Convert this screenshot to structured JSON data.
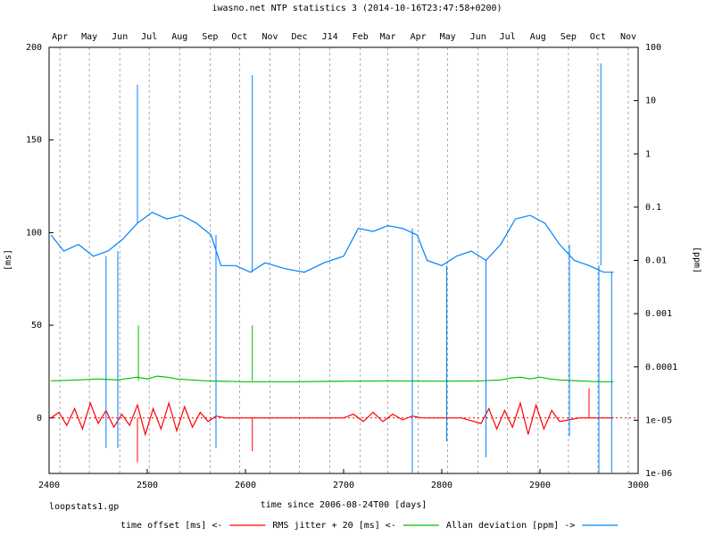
{
  "chart_data": {
    "type": "line",
    "title": "iwasno.net NTP statistics 3 (2014-10-16T23:47:58+0200)",
    "footer_label": "loopstats1.gp",
    "xlabel": "time since 2006-08-24T00 [days]",
    "ylabel_left": "[ms]",
    "ylabel_right": "[ppm]",
    "xlim": [
      2400,
      3000
    ],
    "ylim_left": [
      -30,
      200
    ],
    "right_axis_scale": "log",
    "right_axis_decades": [
      -6,
      2
    ],
    "grid": "vertical dashed month lines",
    "x_ticks": [
      2400,
      2500,
      2600,
      2700,
      2800,
      2900,
      3000
    ],
    "x_tick_labels": [
      "2400",
      "2500",
      "2600",
      "2700",
      "2800",
      "2900",
      "3000"
    ],
    "y_left_ticks": [
      0,
      50,
      100,
      150,
      200
    ],
    "y_left_tick_labels": [
      "0",
      "50",
      "100",
      "150",
      "200"
    ],
    "y_right_tick_labels": [
      "1e-06",
      "1e-05",
      "0.0001",
      "0.001",
      "0.01",
      "0.1",
      "1",
      "10",
      "100"
    ],
    "months": [
      {
        "label": "Apr",
        "x": 2411
      },
      {
        "label": "May",
        "x": 2441
      },
      {
        "label": "Jun",
        "x": 2472
      },
      {
        "label": "Jul",
        "x": 2502
      },
      {
        "label": "Aug",
        "x": 2533
      },
      {
        "label": "Sep",
        "x": 2564
      },
      {
        "label": "Oct",
        "x": 2594
      },
      {
        "label": "Nov",
        "x": 2625
      },
      {
        "label": "Dec",
        "x": 2655
      },
      {
        "label": "J14",
        "x": 2686
      },
      {
        "label": "Feb",
        "x": 2717
      },
      {
        "label": "Mar",
        "x": 2745
      },
      {
        "label": "Apr",
        "x": 2776
      },
      {
        "label": "May",
        "x": 2806
      },
      {
        "label": "Jun",
        "x": 2837
      },
      {
        "label": "Jul",
        "x": 2867
      },
      {
        "label": "Aug",
        "x": 2898
      },
      {
        "label": "Sep",
        "x": 2929
      },
      {
        "label": "Oct",
        "x": 2959
      },
      {
        "label": "Nov",
        "x": 2990
      }
    ],
    "series": [
      {
        "name": "time offset [ms] <-",
        "color": "#ff0000",
        "axis": "left",
        "x": [
          2402,
          2410,
          2418,
          2426,
          2434,
          2442,
          2450,
          2458,
          2466,
          2474,
          2482,
          2490,
          2498,
          2506,
          2514,
          2522,
          2530,
          2538,
          2546,
          2554,
          2562,
          2570,
          2580,
          2600,
          2620,
          2640,
          2660,
          2680,
          2700,
          2710,
          2720,
          2730,
          2740,
          2750,
          2760,
          2770,
          2780,
          2800,
          2820,
          2840,
          2848,
          2856,
          2864,
          2872,
          2880,
          2888,
          2896,
          2904,
          2912,
          2920,
          2940,
          2960,
          2975
        ],
        "y": [
          0,
          3,
          -4,
          5,
          -6,
          8,
          -3,
          4,
          -5,
          2,
          -4,
          7,
          -9,
          5,
          -6,
          8,
          -7,
          6,
          -5,
          3,
          -2,
          1,
          0,
          0,
          0,
          0,
          0,
          0,
          0,
          2,
          -2,
          3,
          -2,
          2,
          -1,
          1,
          0,
          0,
          0,
          -3,
          5,
          -6,
          4,
          -5,
          8,
          -9,
          7,
          -6,
          4,
          -2,
          0,
          0,
          0
        ],
        "spikes": [
          {
            "x": 2490,
            "y": -24
          },
          {
            "x": 2607,
            "y": -18
          },
          {
            "x": 2950,
            "y": 16
          }
        ]
      },
      {
        "name": "RMS jitter + 20 [ms] <-",
        "color": "#00c000",
        "axis": "left",
        "x": [
          2402,
          2430,
          2450,
          2470,
          2490,
          2500,
          2510,
          2520,
          2530,
          2545,
          2560,
          2600,
          2650,
          2700,
          2750,
          2800,
          2840,
          2860,
          2870,
          2880,
          2890,
          2900,
          2910,
          2920,
          2940,
          2960,
          2975
        ],
        "y": [
          20,
          20.5,
          21,
          20.5,
          22,
          21,
          22.5,
          22,
          21,
          20.5,
          20,
          19.5,
          19.5,
          19.8,
          20,
          19.8,
          20,
          20.5,
          21.5,
          22,
          21,
          22,
          21,
          20.5,
          20,
          19.5,
          19.5
        ],
        "spikes": [
          {
            "x": 2491,
            "y": 50
          },
          {
            "x": 2607,
            "y": 50
          }
        ]
      },
      {
        "name": "Allan deviation [ppm] ->",
        "color": "#0080ff",
        "axis": "right",
        "x": [
          2402,
          2415,
          2430,
          2445,
          2460,
          2475,
          2490,
          2505,
          2520,
          2535,
          2550,
          2565,
          2575,
          2590,
          2605,
          2620,
          2640,
          2660,
          2680,
          2700,
          2715,
          2730,
          2745,
          2760,
          2775,
          2785,
          2800,
          2815,
          2830,
          2845,
          2860,
          2875,
          2890,
          2905,
          2920,
          2935,
          2950,
          2965,
          2975
        ],
        "y": [
          0.03,
          0.015,
          0.02,
          0.012,
          0.015,
          0.025,
          0.05,
          0.08,
          0.06,
          0.07,
          0.05,
          0.03,
          0.008,
          0.008,
          0.006,
          0.009,
          0.007,
          0.006,
          0.009,
          0.012,
          0.04,
          0.035,
          0.045,
          0.04,
          0.03,
          0.01,
          0.008,
          0.012,
          0.015,
          0.01,
          0.02,
          0.06,
          0.07,
          0.05,
          0.02,
          0.01,
          0.008,
          0.006,
          0.006
        ],
        "spikes": [
          {
            "x": 2458,
            "y": 3e-06
          },
          {
            "x": 2470,
            "y": 3e-06
          },
          {
            "x": 2490,
            "y": 20
          },
          {
            "x": 2570,
            "y": 3e-06
          },
          {
            "x": 2607,
            "y": 30
          },
          {
            "x": 2770,
            "y": 1e-06
          },
          {
            "x": 2805,
            "y": 4e-06
          },
          {
            "x": 2845,
            "y": 2e-06
          },
          {
            "x": 2930,
            "y": 5e-06
          },
          {
            "x": 2960,
            "y": 1e-06
          },
          {
            "x": 2962,
            "y": 50
          },
          {
            "x": 2973,
            "y": 1e-06
          }
        ]
      }
    ],
    "legend_placement": "bottom-center"
  }
}
